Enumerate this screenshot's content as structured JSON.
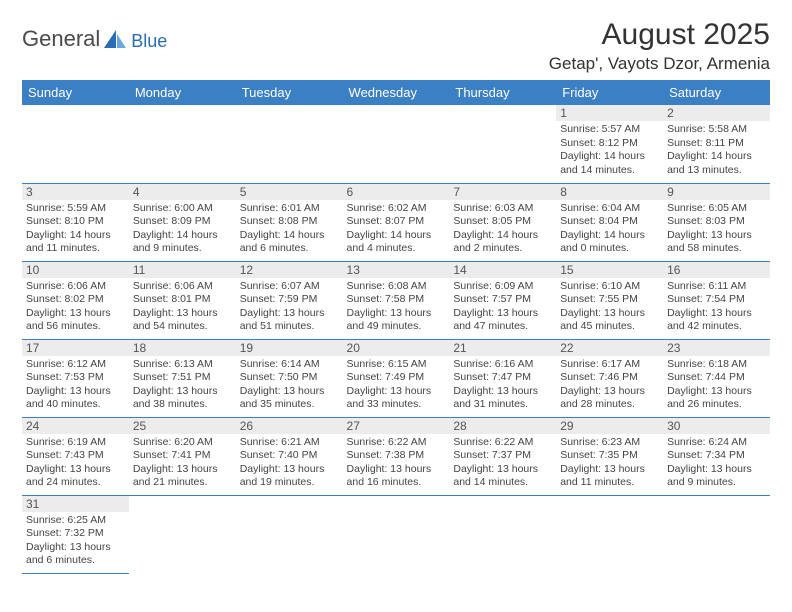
{
  "brand": {
    "name": "General",
    "suffix": "Blue"
  },
  "title": "August 2025",
  "location": "Getap', Vayots Dzor, Armenia",
  "colors": {
    "header_bg": "#3b7fc4",
    "header_text": "#ffffff",
    "daynum_bg": "#ececec",
    "border": "#3b7fc4",
    "text": "#444444",
    "logo_gray": "#4a4a4a",
    "logo_blue": "#2a6db5"
  },
  "weekdays": [
    "Sunday",
    "Monday",
    "Tuesday",
    "Wednesday",
    "Thursday",
    "Friday",
    "Saturday"
  ],
  "weeks": [
    [
      {
        "n": "",
        "sr": "",
        "ss": "",
        "dl": ""
      },
      {
        "n": "",
        "sr": "",
        "ss": "",
        "dl": ""
      },
      {
        "n": "",
        "sr": "",
        "ss": "",
        "dl": ""
      },
      {
        "n": "",
        "sr": "",
        "ss": "",
        "dl": ""
      },
      {
        "n": "",
        "sr": "",
        "ss": "",
        "dl": ""
      },
      {
        "n": "1",
        "sr": "Sunrise: 5:57 AM",
        "ss": "Sunset: 8:12 PM",
        "dl": "Daylight: 14 hours and 14 minutes."
      },
      {
        "n": "2",
        "sr": "Sunrise: 5:58 AM",
        "ss": "Sunset: 8:11 PM",
        "dl": "Daylight: 14 hours and 13 minutes."
      }
    ],
    [
      {
        "n": "3",
        "sr": "Sunrise: 5:59 AM",
        "ss": "Sunset: 8:10 PM",
        "dl": "Daylight: 14 hours and 11 minutes."
      },
      {
        "n": "4",
        "sr": "Sunrise: 6:00 AM",
        "ss": "Sunset: 8:09 PM",
        "dl": "Daylight: 14 hours and 9 minutes."
      },
      {
        "n": "5",
        "sr": "Sunrise: 6:01 AM",
        "ss": "Sunset: 8:08 PM",
        "dl": "Daylight: 14 hours and 6 minutes."
      },
      {
        "n": "6",
        "sr": "Sunrise: 6:02 AM",
        "ss": "Sunset: 8:07 PM",
        "dl": "Daylight: 14 hours and 4 minutes."
      },
      {
        "n": "7",
        "sr": "Sunrise: 6:03 AM",
        "ss": "Sunset: 8:05 PM",
        "dl": "Daylight: 14 hours and 2 minutes."
      },
      {
        "n": "8",
        "sr": "Sunrise: 6:04 AM",
        "ss": "Sunset: 8:04 PM",
        "dl": "Daylight: 14 hours and 0 minutes."
      },
      {
        "n": "9",
        "sr": "Sunrise: 6:05 AM",
        "ss": "Sunset: 8:03 PM",
        "dl": "Daylight: 13 hours and 58 minutes."
      }
    ],
    [
      {
        "n": "10",
        "sr": "Sunrise: 6:06 AM",
        "ss": "Sunset: 8:02 PM",
        "dl": "Daylight: 13 hours and 56 minutes."
      },
      {
        "n": "11",
        "sr": "Sunrise: 6:06 AM",
        "ss": "Sunset: 8:01 PM",
        "dl": "Daylight: 13 hours and 54 minutes."
      },
      {
        "n": "12",
        "sr": "Sunrise: 6:07 AM",
        "ss": "Sunset: 7:59 PM",
        "dl": "Daylight: 13 hours and 51 minutes."
      },
      {
        "n": "13",
        "sr": "Sunrise: 6:08 AM",
        "ss": "Sunset: 7:58 PM",
        "dl": "Daylight: 13 hours and 49 minutes."
      },
      {
        "n": "14",
        "sr": "Sunrise: 6:09 AM",
        "ss": "Sunset: 7:57 PM",
        "dl": "Daylight: 13 hours and 47 minutes."
      },
      {
        "n": "15",
        "sr": "Sunrise: 6:10 AM",
        "ss": "Sunset: 7:55 PM",
        "dl": "Daylight: 13 hours and 45 minutes."
      },
      {
        "n": "16",
        "sr": "Sunrise: 6:11 AM",
        "ss": "Sunset: 7:54 PM",
        "dl": "Daylight: 13 hours and 42 minutes."
      }
    ],
    [
      {
        "n": "17",
        "sr": "Sunrise: 6:12 AM",
        "ss": "Sunset: 7:53 PM",
        "dl": "Daylight: 13 hours and 40 minutes."
      },
      {
        "n": "18",
        "sr": "Sunrise: 6:13 AM",
        "ss": "Sunset: 7:51 PM",
        "dl": "Daylight: 13 hours and 38 minutes."
      },
      {
        "n": "19",
        "sr": "Sunrise: 6:14 AM",
        "ss": "Sunset: 7:50 PM",
        "dl": "Daylight: 13 hours and 35 minutes."
      },
      {
        "n": "20",
        "sr": "Sunrise: 6:15 AM",
        "ss": "Sunset: 7:49 PM",
        "dl": "Daylight: 13 hours and 33 minutes."
      },
      {
        "n": "21",
        "sr": "Sunrise: 6:16 AM",
        "ss": "Sunset: 7:47 PM",
        "dl": "Daylight: 13 hours and 31 minutes."
      },
      {
        "n": "22",
        "sr": "Sunrise: 6:17 AM",
        "ss": "Sunset: 7:46 PM",
        "dl": "Daylight: 13 hours and 28 minutes."
      },
      {
        "n": "23",
        "sr": "Sunrise: 6:18 AM",
        "ss": "Sunset: 7:44 PM",
        "dl": "Daylight: 13 hours and 26 minutes."
      }
    ],
    [
      {
        "n": "24",
        "sr": "Sunrise: 6:19 AM",
        "ss": "Sunset: 7:43 PM",
        "dl": "Daylight: 13 hours and 24 minutes."
      },
      {
        "n": "25",
        "sr": "Sunrise: 6:20 AM",
        "ss": "Sunset: 7:41 PM",
        "dl": "Daylight: 13 hours and 21 minutes."
      },
      {
        "n": "26",
        "sr": "Sunrise: 6:21 AM",
        "ss": "Sunset: 7:40 PM",
        "dl": "Daylight: 13 hours and 19 minutes."
      },
      {
        "n": "27",
        "sr": "Sunrise: 6:22 AM",
        "ss": "Sunset: 7:38 PM",
        "dl": "Daylight: 13 hours and 16 minutes."
      },
      {
        "n": "28",
        "sr": "Sunrise: 6:22 AM",
        "ss": "Sunset: 7:37 PM",
        "dl": "Daylight: 13 hours and 14 minutes."
      },
      {
        "n": "29",
        "sr": "Sunrise: 6:23 AM",
        "ss": "Sunset: 7:35 PM",
        "dl": "Daylight: 13 hours and 11 minutes."
      },
      {
        "n": "30",
        "sr": "Sunrise: 6:24 AM",
        "ss": "Sunset: 7:34 PM",
        "dl": "Daylight: 13 hours and 9 minutes."
      }
    ],
    [
      {
        "n": "31",
        "sr": "Sunrise: 6:25 AM",
        "ss": "Sunset: 7:32 PM",
        "dl": "Daylight: 13 hours and 6 minutes."
      },
      {
        "n": "",
        "sr": "",
        "ss": "",
        "dl": ""
      },
      {
        "n": "",
        "sr": "",
        "ss": "",
        "dl": ""
      },
      {
        "n": "",
        "sr": "",
        "ss": "",
        "dl": ""
      },
      {
        "n": "",
        "sr": "",
        "ss": "",
        "dl": ""
      },
      {
        "n": "",
        "sr": "",
        "ss": "",
        "dl": ""
      },
      {
        "n": "",
        "sr": "",
        "ss": "",
        "dl": ""
      }
    ]
  ]
}
